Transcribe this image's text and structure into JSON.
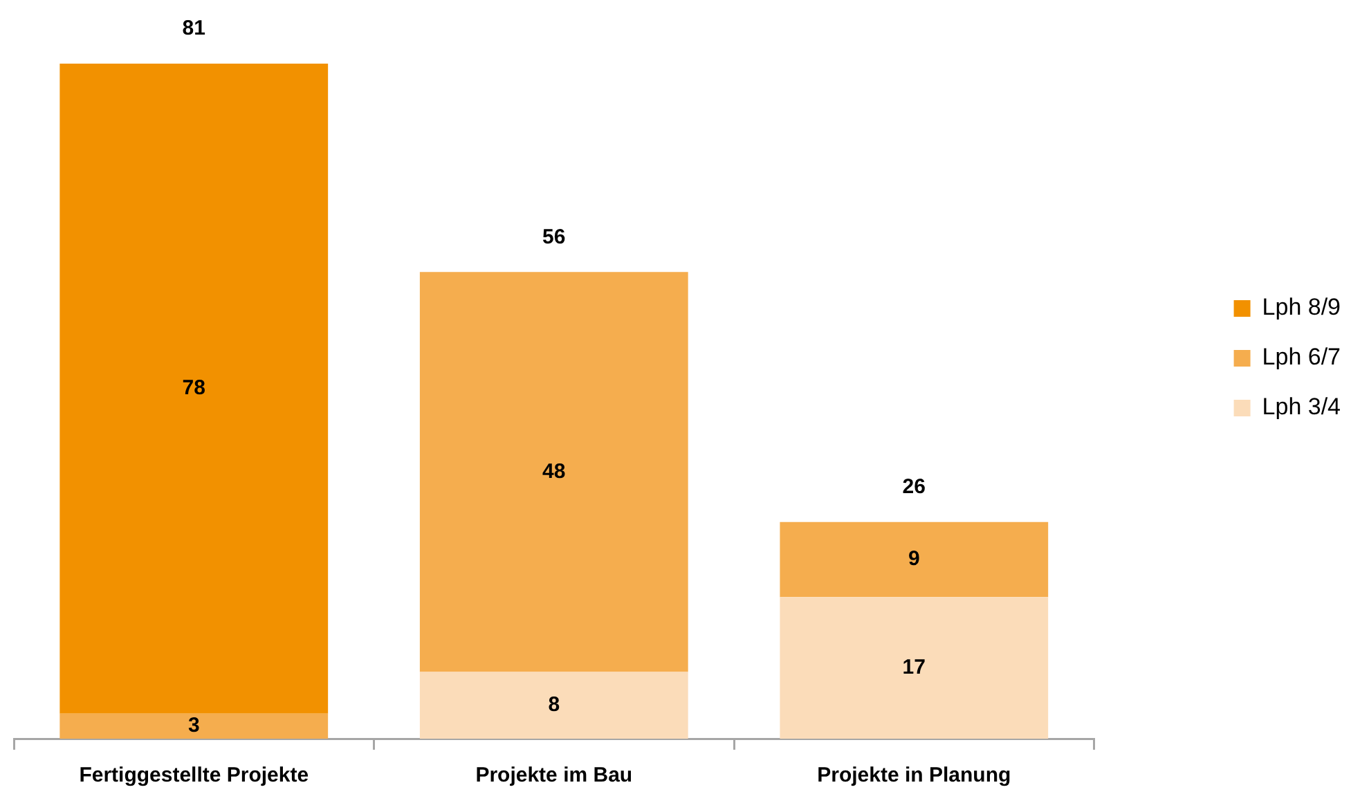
{
  "chart_data": {
    "type": "bar",
    "stacked": true,
    "categories": [
      "Fertiggestellte Projekte",
      "Projekte im Bau",
      "Projekte in Planung"
    ],
    "series": [
      {
        "name": "Lph 3/4",
        "color": "#fbdcb9",
        "values": [
          null,
          8,
          17
        ]
      },
      {
        "name": "Lph 6/7",
        "color": "#f5ad4e",
        "values": [
          3,
          48,
          9
        ]
      },
      {
        "name": "Lph 8/9",
        "color": "#f29100",
        "values": [
          78,
          null,
          null
        ]
      }
    ],
    "data_labels": true,
    "totals": [
      "81",
      "56",
      "26"
    ],
    "legend": "right",
    "tick_labels": "x"
  }
}
